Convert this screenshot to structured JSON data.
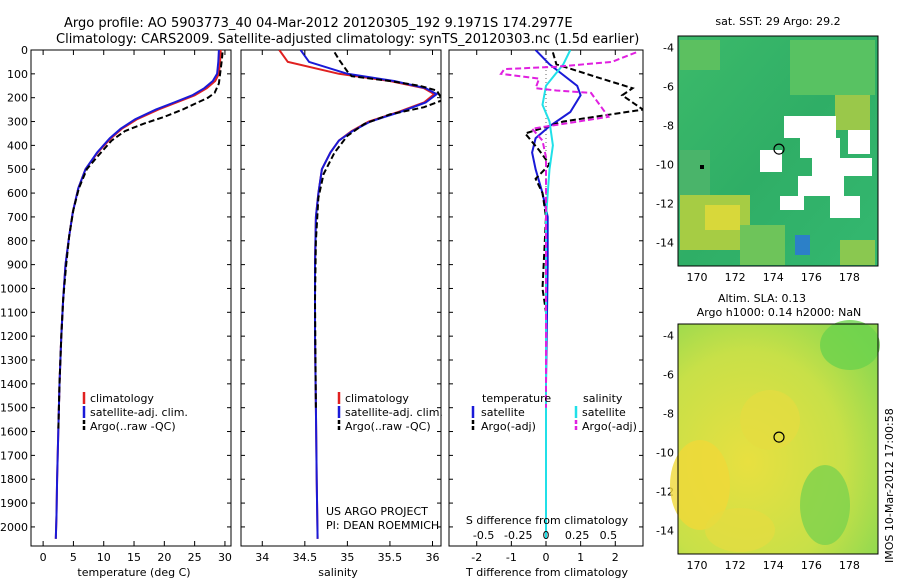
{
  "header": {
    "line1": "Argo profile: AO 5903773_40 04-Mar-2012 20120305_192 9.1971S 174.2977E",
    "line2": "Climatology: CARS2009. Satellite-adjusted climatology: synTS_20120303.nc (1.5d earlier)"
  },
  "colors": {
    "climatology": "#e02020",
    "satellite": "#1a1ad8",
    "argo": "#000000",
    "salinity_satellite": "#20e0e8",
    "salinity_argo": "#e020e0"
  },
  "chart_data": [
    {
      "type": "line",
      "id": "temperature",
      "xlabel": "temperature (deg C)",
      "ylabel": "",
      "xlim": [
        -2,
        31
      ],
      "ylim": [
        2080,
        0
      ],
      "xticks": [
        0,
        5,
        10,
        15,
        20,
        25,
        30
      ],
      "xticklabels": [
        "0",
        "5",
        "10",
        "15",
        "20",
        "25",
        "30"
      ],
      "yticks": [
        0,
        100,
        200,
        300,
        400,
        500,
        600,
        700,
        800,
        900,
        1000,
        1100,
        1200,
        1300,
        1400,
        1500,
        1600,
        1700,
        1800,
        1900,
        2000
      ],
      "legend": [
        "climatology",
        "satellite-adj. clim.",
        "Argo(..raw -QC)"
      ],
      "legend_loc": "lower-left",
      "series": [
        {
          "name": "climatology",
          "style": "solid",
          "color": "#e02020",
          "x": [
            29.3,
            29.2,
            29.0,
            28.4,
            27.0,
            25.0,
            22.0,
            19.0,
            15.5,
            13.0,
            11.2,
            9.0,
            7.0,
            5.8,
            4.9,
            4.3,
            3.7,
            3.3,
            3.0,
            2.7,
            2.5,
            2.3,
            2.2,
            2.1
          ],
          "y": [
            0,
            50,
            100,
            130,
            160,
            190,
            220,
            250,
            290,
            330,
            370,
            430,
            500,
            580,
            680,
            780,
            900,
            1050,
            1200,
            1400,
            1600,
            1800,
            1950,
            2050
          ]
        },
        {
          "name": "satellite-adj. clim.",
          "style": "solid",
          "color": "#1a1ad8",
          "x": [
            29.0,
            28.9,
            28.7,
            28.0,
            26.6,
            24.6,
            21.6,
            18.6,
            15.2,
            12.8,
            11.0,
            8.9,
            7.0,
            5.8,
            4.9,
            4.3,
            3.7,
            3.3,
            3.0,
            2.7,
            2.5,
            2.3,
            2.2,
            2.1
          ],
          "y": [
            0,
            50,
            100,
            130,
            160,
            190,
            220,
            250,
            290,
            330,
            370,
            430,
            500,
            580,
            680,
            780,
            900,
            1050,
            1200,
            1400,
            1600,
            1800,
            1950,
            2050
          ]
        },
        {
          "name": "Argo(..raw -QC)",
          "style": "dashed",
          "color": "#000000",
          "x": [
            29.6,
            29.5,
            29.3,
            29.0,
            28.3,
            27.2,
            25.5,
            23.0,
            20.0,
            16.5,
            13.5,
            11.3,
            9.2,
            7.2,
            5.9,
            5.0,
            4.3,
            3.8,
            3.3,
            3.0,
            2.7,
            2.5
          ],
          "y": [
            10,
            40,
            80,
            140,
            180,
            200,
            220,
            250,
            280,
            310,
            340,
            380,
            440,
            500,
            580,
            670,
            780,
            900,
            1050,
            1200,
            1400,
            1600
          ]
        }
      ]
    },
    {
      "type": "line",
      "id": "salinity",
      "xlabel": "salinity",
      "ylabel": "",
      "xlim": [
        33.75,
        36.1
      ],
      "ylim": [
        2080,
        0
      ],
      "xticks": [
        34,
        34.5,
        35,
        35.5,
        36
      ],
      "xticklabels": [
        "34",
        "34.5",
        "35",
        "35.5",
        "36"
      ],
      "legend": [
        "climatology",
        "satellite-adj. clim.",
        "Argo(..raw -QC)"
      ],
      "legend_loc": "lower-right",
      "annotation": [
        "US ARGO PROJECT",
        "PI: DEAN ROEMMICH"
      ],
      "series": [
        {
          "name": "climatology",
          "style": "solid",
          "color": "#e02020",
          "x": [
            34.2,
            34.3,
            34.9,
            35.5,
            35.9,
            36.02,
            35.9,
            35.6,
            35.25,
            35.05,
            34.9,
            34.8,
            34.7,
            34.66,
            34.63,
            34.62,
            34.62,
            34.63,
            34.64,
            34.65
          ],
          "y": [
            0,
            50,
            100,
            130,
            160,
            185,
            220,
            260,
            300,
            340,
            380,
            430,
            500,
            600,
            700,
            900,
            1200,
            1500,
            1800,
            2050
          ]
        },
        {
          "name": "satellite-adj. clim.",
          "style": "solid",
          "color": "#1a1ad8",
          "x": [
            34.45,
            34.55,
            35.0,
            35.55,
            35.92,
            36.05,
            35.92,
            35.62,
            35.27,
            35.06,
            34.9,
            34.8,
            34.7,
            34.66,
            34.63,
            34.62,
            34.62,
            34.63,
            34.64,
            34.65
          ],
          "y": [
            0,
            50,
            100,
            130,
            160,
            185,
            220,
            260,
            300,
            340,
            380,
            430,
            500,
            600,
            700,
            900,
            1200,
            1500,
            1800,
            2050
          ]
        },
        {
          "name": "Argo(..raw -QC)",
          "style": "dashed",
          "color": "#000000",
          "x": [
            34.85,
            34.9,
            35.0,
            35.05,
            35.5,
            35.85,
            36.05,
            36.12,
            35.9,
            35.5,
            35.2,
            35.0,
            34.85,
            34.72,
            34.66,
            34.63,
            34.62,
            34.63
          ],
          "y": [
            10,
            40,
            90,
            110,
            130,
            150,
            170,
            210,
            240,
            270,
            310,
            360,
            430,
            520,
            620,
            800,
            1050,
            1500
          ]
        }
      ]
    },
    {
      "type": "line",
      "id": "differences",
      "xlabel": "T difference from climatology",
      "ylabel": "",
      "xlim": [
        -2.8,
        2.8
      ],
      "ylim": [
        2080,
        0
      ],
      "xticks": [
        -2,
        -1,
        0,
        1,
        2
      ],
      "xticklabels": [
        "-2",
        "-1",
        "0",
        "1",
        "2"
      ],
      "top_label": "S difference from climatology",
      "top_ticklabels": [
        "-0.5",
        "-0.25",
        "0",
        "0.25",
        "0.5"
      ],
      "top_tick_values": [
        -1.8,
        -0.8,
        0,
        0.9,
        1.8
      ],
      "legend": {
        "temperature_title": "temperature",
        "salinity_title": "salinity",
        "items": [
          "satellite",
          "Argo(-adj)",
          "satellite",
          "Argo(-adj)"
        ]
      },
      "series": [
        {
          "name": "temperature satellite",
          "style": "solid",
          "color": "#1a1ad8",
          "x": [
            -0.3,
            0.1,
            0.9,
            1.0,
            0.7,
            0.1,
            -0.3,
            -0.4,
            -0.3,
            -0.1,
            0.05,
            0.05,
            0.0,
            0.0
          ],
          "y": [
            0,
            60,
            150,
            190,
            260,
            320,
            370,
            430,
            500,
            600,
            700,
            900,
            1400,
            2050
          ]
        },
        {
          "name": "temperature Argo(-adj)",
          "style": "dashed",
          "color": "#000000",
          "x": [
            0.2,
            0.3,
            1.6,
            2.5,
            2.2,
            2.8,
            0.5,
            -0.6,
            -0.2,
            0.1,
            -0.3,
            -0.1,
            0.0,
            -0.1,
            0.0,
            0.0
          ],
          "y": [
            10,
            60,
            120,
            160,
            190,
            250,
            300,
            350,
            420,
            480,
            540,
            600,
            700,
            1000,
            1100,
            1600
          ]
        },
        {
          "name": "salinity satellite",
          "style": "solid",
          "color": "#20e0e8",
          "x": [
            0.7,
            0.5,
            0.0,
            -0.1,
            0.1,
            0.2,
            0.1,
            0.0,
            0.0,
            0.0
          ],
          "y": [
            0,
            60,
            150,
            230,
            300,
            400,
            500,
            700,
            1000,
            2050
          ]
        },
        {
          "name": "salinity Argo(-adj)",
          "style": "dashed",
          "color": "#e020e0",
          "x": [
            2.6,
            1.9,
            0.3,
            -1.2,
            -1.3,
            -0.2,
            -0.3,
            0.3,
            1.3,
            1.8,
            -0.4,
            -0.1,
            0.0,
            0.0
          ],
          "y": [
            10,
            50,
            70,
            80,
            100,
            120,
            160,
            170,
            180,
            280,
            330,
            380,
            450,
            1500
          ]
        }
      ]
    },
    {
      "type": "heatmap",
      "id": "sst-map",
      "title": "sat. SST: 29 Argo: 29.2",
      "xticks": [
        170,
        172,
        174,
        176,
        178
      ],
      "xticklabels": [
        "170",
        "172",
        "174",
        "176",
        "178"
      ],
      "yticks": [
        -4,
        -6,
        -8,
        -10,
        -12,
        -14
      ],
      "yticklabels": [
        "-4",
        "-6",
        "-8",
        "-10",
        "-12",
        "-14"
      ],
      "xlim": [
        169,
        179.5
      ],
      "ylim": [
        -15.2,
        -3.4
      ],
      "float_position": {
        "lon": 174.3,
        "lat": -9.2
      }
    },
    {
      "type": "heatmap",
      "id": "sla-map",
      "title": "Altim. SLA: 0.13",
      "subtitle": "Argo h1000: 0.14 h2000: NaN",
      "xticks": [
        170,
        172,
        174,
        176,
        178
      ],
      "xticklabels": [
        "170",
        "172",
        "174",
        "176",
        "178"
      ],
      "yticks": [
        -4,
        -6,
        -8,
        -10,
        -12,
        -14
      ],
      "yticklabels": [
        "-4",
        "-6",
        "-8",
        "-10",
        "-12",
        "-14"
      ],
      "xlim": [
        169,
        179.5
      ],
      "ylim": [
        -15.2,
        -3.4
      ],
      "float_position": {
        "lon": 174.3,
        "lat": -9.2
      }
    }
  ],
  "footer": {
    "stamp": "IMOS 10-Mar-2012 17:00:58"
  }
}
